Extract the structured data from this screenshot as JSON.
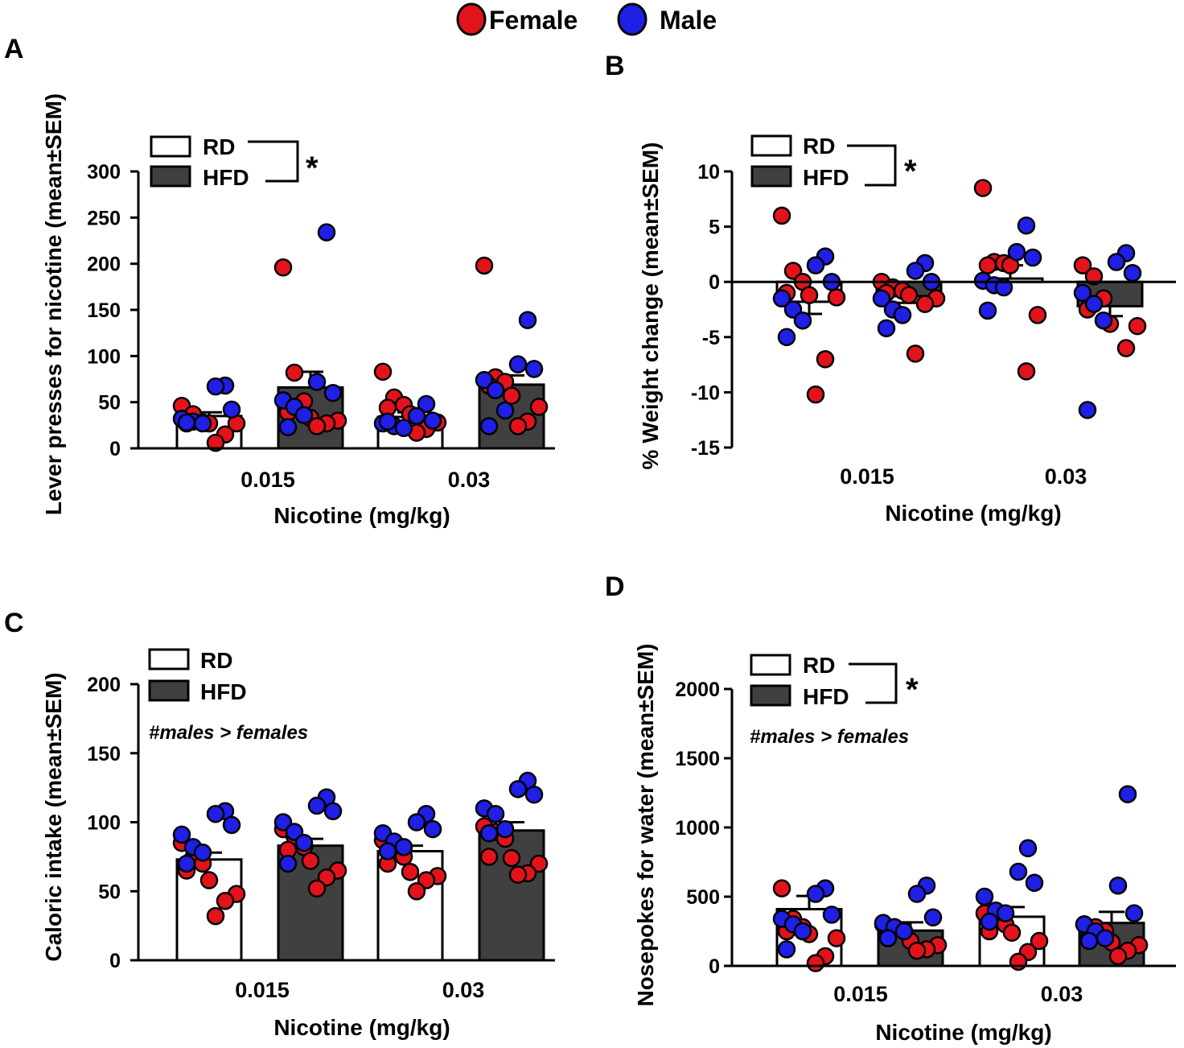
{
  "legend": {
    "female_label": "Female",
    "male_label": "Male",
    "female_color": "#e3131b",
    "male_color": "#1f1fe6"
  },
  "group_labels": {
    "rd": "RD",
    "hfd": "HFD"
  },
  "colors": {
    "rd_fill": "#ffffff",
    "hfd_fill": "#404040"
  },
  "chart_data": [
    {
      "panel": "A",
      "type": "bar",
      "ylabel": "Lever presses for nicotine (mean±SEM)",
      "xlabel": "Nicotine (mg/kg)",
      "categories": [
        "0.015",
        "0.03"
      ],
      "ylim": [
        0,
        300
      ],
      "yticks": [
        0,
        50,
        100,
        150,
        200,
        250,
        300
      ],
      "significance": "*",
      "note": "",
      "series": [
        {
          "name": "RD",
          "values": [
            35,
            34
          ],
          "sem": [
            4,
            5
          ]
        },
        {
          "name": "HFD",
          "values": [
            66,
            69
          ],
          "sem": [
            17,
            10
          ]
        }
      ],
      "points": {
        "RD_0.015": {
          "female": [
            46,
            37,
            28,
            27,
            27,
            27,
            15,
            6
          ],
          "male": [
            68,
            67,
            42,
            32,
            29,
            27,
            28
          ]
        },
        "HFD_0.015": {
          "female": [
            196,
            82,
            51,
            39,
            33,
            30,
            27,
            24
          ],
          "male": [
            234,
            72,
            60,
            52,
            45,
            36,
            23
          ]
        },
        "RD_0.03": {
          "female": [
            83,
            55,
            47,
            44,
            37,
            28,
            21,
            17
          ],
          "male": [
            48,
            35,
            30,
            27,
            24,
            22,
            29
          ]
        },
        "HFD_0.03": {
          "female": [
            198,
            77,
            72,
            68,
            57,
            45,
            29,
            24
          ],
          "male": [
            139,
            91,
            86,
            74,
            63,
            41,
            24
          ]
        }
      }
    },
    {
      "panel": "B",
      "type": "bar",
      "ylabel": "% Weight change (mean±SEM)",
      "xlabel": "Nicotine (mg/kg)",
      "categories": [
        "0.015",
        "0.03"
      ],
      "ylim": [
        -15,
        10
      ],
      "yticks": [
        -15,
        -10,
        -5,
        0,
        5,
        10
      ],
      "significance": "*",
      "note": "",
      "series": [
        {
          "name": "RD",
          "values": [
            -1.8,
            0.3
          ],
          "sem": [
            1.1,
            1.2
          ]
        },
        {
          "name": "HFD",
          "values": [
            -1.3,
            -2.2
          ],
          "sem": [
            0.6,
            0.9
          ]
        }
      ],
      "points": {
        "RD_0.015": {
          "female": [
            6,
            1,
            0,
            -1,
            -1.2,
            -1.4,
            -7,
            -10.2
          ],
          "male": [
            2.3,
            1.5,
            0,
            -1.5,
            -2.5,
            -3.5,
            -5
          ]
        },
        "HFD_0.015": {
          "female": [
            0,
            -0.5,
            -0.8,
            -1,
            -1.2,
            -1.5,
            -2,
            -6.5
          ],
          "male": [
            1.7,
            1,
            0,
            -1.5,
            -2.5,
            -3,
            -4.2
          ]
        },
        "RD_0.03": {
          "female": [
            8.5,
            1.8,
            1.7,
            1.5,
            1.5,
            -3,
            -8.1
          ],
          "male": [
            5.1,
            2.7,
            2.2,
            0.1,
            -0.3,
            -0.5,
            -2.6
          ]
        },
        "HFD_0.03": {
          "female": [
            1.5,
            0.5,
            -1.5,
            -2.5,
            -3.8,
            -4,
            -6
          ],
          "male": [
            2.6,
            1.8,
            0.8,
            -1,
            -2,
            -3.5,
            -11.6
          ]
        }
      }
    },
    {
      "panel": "C",
      "type": "bar",
      "ylabel": "Caloric intake (mean±SEM)",
      "xlabel": "Nicotine (mg/kg)",
      "categories": [
        "0.015",
        "0.03"
      ],
      "ylim": [
        0,
        200
      ],
      "yticks": [
        0,
        50,
        100,
        150,
        200
      ],
      "significance": "",
      "note": "#males > females",
      "series": [
        {
          "name": "RD",
          "values": [
            73,
            79
          ],
          "sem": [
            5,
            4
          ]
        },
        {
          "name": "HFD",
          "values": [
            83,
            94
          ],
          "sem": [
            5,
            6
          ]
        }
      ],
      "points": {
        "RD_0.015": {
          "female": [
            85,
            74,
            70,
            65,
            58,
            48,
            43,
            32
          ],
          "male": [
            108,
            106,
            98,
            91,
            82,
            78,
            70
          ]
        },
        "HFD_0.015": {
          "female": [
            95,
            90,
            82,
            80,
            72,
            65,
            60,
            52
          ],
          "male": [
            118,
            112,
            108,
            100,
            93,
            85,
            70
          ]
        },
        "RD_0.03": {
          "female": [
            87,
            80,
            75,
            70,
            64,
            61,
            58,
            50
          ],
          "male": [
            106,
            100,
            95,
            92,
            86,
            82,
            79
          ]
        },
        "HFD_0.03": {
          "female": [
            97,
            93,
            88,
            75,
            74,
            70,
            63,
            62
          ],
          "male": [
            130,
            124,
            120,
            110,
            106,
            95,
            92
          ]
        }
      }
    },
    {
      "panel": "D",
      "type": "bar",
      "ylabel": "Nosepokes for water (mean±SEM)",
      "xlabel": "Nicotine (mg/kg)",
      "categories": [
        "0.015",
        "0.03"
      ],
      "ylim": [
        0,
        2000
      ],
      "yticks": [
        0,
        500,
        1000,
        1500,
        2000
      ],
      "significance": "*",
      "note": "#males > females",
      "series": [
        {
          "name": "RD",
          "values": [
            410,
            355
          ],
          "sem": [
            95,
            70
          ]
        },
        {
          "name": "HFD",
          "values": [
            255,
            310
          ],
          "sem": [
            60,
            80
          ]
        }
      ],
      "points": {
        "RD_0.015": {
          "female": [
            560,
            340,
            280,
            250,
            230,
            200,
            70,
            20
          ],
          "male": [
            560,
            520,
            370,
            340,
            300,
            250,
            120
          ]
        },
        "HFD_0.015": {
          "female": [
            300,
            280,
            250,
            230,
            180,
            150,
            120,
            110
          ],
          "male": [
            580,
            520,
            350,
            310,
            280,
            250,
            200
          ]
        },
        "RD_0.03": {
          "female": [
            380,
            330,
            300,
            250,
            240,
            180,
            100,
            30
          ],
          "male": [
            850,
            680,
            600,
            500,
            400,
            380,
            320
          ]
        },
        "HFD_0.03": {
          "female": [
            300,
            280,
            250,
            200,
            170,
            150,
            110,
            70
          ],
          "male": [
            1240,
            580,
            380,
            300,
            250,
            200,
            180
          ]
        }
      }
    }
  ]
}
